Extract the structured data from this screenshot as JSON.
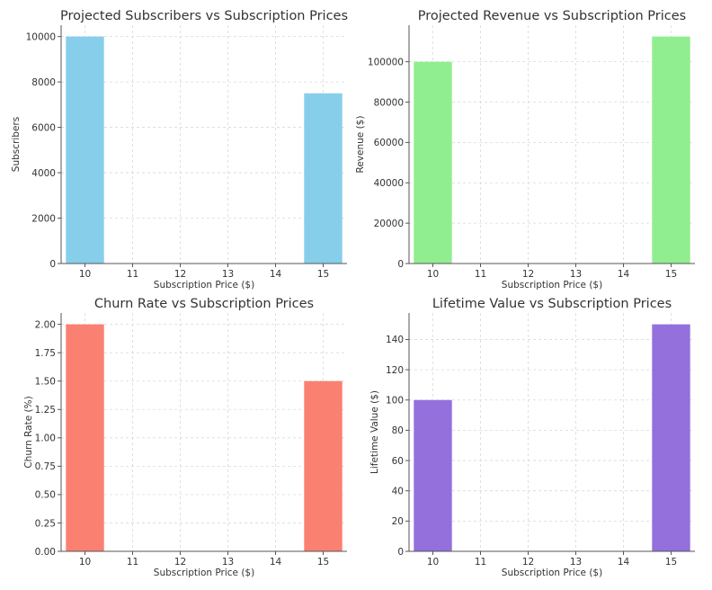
{
  "figure": {
    "background": "#ffffff"
  },
  "chart_data": [
    {
      "type": "bar",
      "title": "Projected Subscribers vs Subscription Prices",
      "xlabel": "Subscription Price ($)",
      "ylabel": "Subscribers",
      "categories": [
        10,
        15
      ],
      "values": [
        10000,
        7500
      ],
      "xticks": [
        10,
        11,
        12,
        13,
        14,
        15
      ],
      "xlim": [
        9.5,
        15.5
      ],
      "ylim": [
        0,
        10500
      ],
      "yticks": [
        0,
        2000,
        4000,
        6000,
        8000,
        10000
      ],
      "ytick_labels": [
        "0",
        "2000",
        "4000",
        "6000",
        "8000",
        "10000"
      ],
      "color": "#87ceeb",
      "grid": true
    },
    {
      "type": "bar",
      "title": "Projected Revenue vs Subscription Prices",
      "xlabel": "Subscription Price ($)",
      "ylabel": "Revenue ($)",
      "categories": [
        10,
        15
      ],
      "values": [
        100000,
        112500
      ],
      "xticks": [
        10,
        11,
        12,
        13,
        14,
        15
      ],
      "xlim": [
        9.5,
        15.5
      ],
      "ylim": [
        0,
        118125
      ],
      "yticks": [
        0,
        20000,
        40000,
        60000,
        80000,
        100000
      ],
      "ytick_labels": [
        "0",
        "20000",
        "40000",
        "60000",
        "80000",
        "100000"
      ],
      "color": "#90ee90",
      "grid": true
    },
    {
      "type": "bar",
      "title": "Churn Rate vs Subscription Prices",
      "xlabel": "Subscription Price ($)",
      "ylabel": "Churn Rate (%)",
      "categories": [
        10,
        15
      ],
      "values": [
        2.0,
        1.5
      ],
      "xticks": [
        10,
        11,
        12,
        13,
        14,
        15
      ],
      "xlim": [
        9.5,
        15.5
      ],
      "ylim": [
        0,
        2.1
      ],
      "yticks": [
        0,
        0.25,
        0.5,
        0.75,
        1.0,
        1.25,
        1.5,
        1.75,
        2.0
      ],
      "ytick_labels": [
        "0.00",
        "0.25",
        "0.50",
        "0.75",
        "1.00",
        "1.25",
        "1.50",
        "1.75",
        "2.00"
      ],
      "color": "#fa8072",
      "grid": true
    },
    {
      "type": "bar",
      "title": "Lifetime Value vs Subscription Prices",
      "xlabel": "Subscription Price ($)",
      "ylabel": "Lifetime Value ($)",
      "categories": [
        10,
        15
      ],
      "values": [
        100,
        150
      ],
      "xticks": [
        10,
        11,
        12,
        13,
        14,
        15
      ],
      "xlim": [
        9.5,
        15.5
      ],
      "ylim": [
        0,
        157.5
      ],
      "yticks": [
        0,
        20,
        40,
        60,
        80,
        100,
        120,
        140
      ],
      "ytick_labels": [
        "0",
        "20",
        "40",
        "60",
        "80",
        "100",
        "120",
        "140"
      ],
      "color": "#9370db",
      "grid": true
    }
  ]
}
